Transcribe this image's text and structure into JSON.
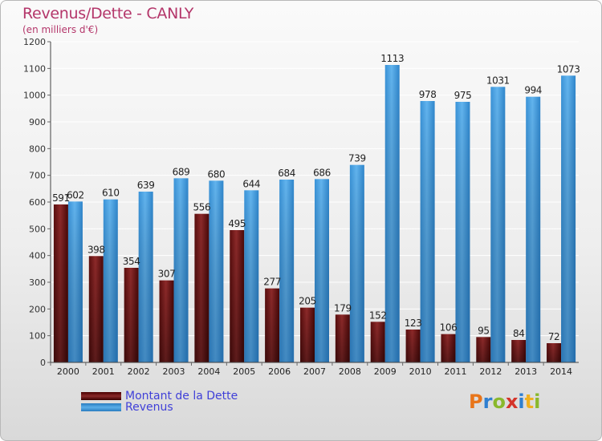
{
  "title": "Revenus/Dette - CANLY",
  "subtitle": "(en milliers d'€)",
  "colors": {
    "debt": "#7a1e1e",
    "revenue": "#4aa3e3",
    "title": "#b4366a",
    "legend_text": "#4040d8"
  },
  "legend": {
    "debt_label": "Montant de la Dette",
    "revenue_label": "Revenus"
  },
  "logo": {
    "text": "Proxiti"
  },
  "chart_data": {
    "type": "bar",
    "categories": [
      "2000",
      "2001",
      "2002",
      "2003",
      "2004",
      "2005",
      "2006",
      "2007",
      "2008",
      "2009",
      "2010",
      "2011",
      "2012",
      "2013",
      "2014"
    ],
    "series": [
      {
        "name": "Montant de la Dette",
        "values": [
          591,
          398,
          354,
          307,
          556,
          495,
          277,
          205,
          179,
          152,
          123,
          106,
          95,
          84,
          72
        ]
      },
      {
        "name": "Revenus",
        "values": [
          602,
          610,
          639,
          689,
          680,
          644,
          684,
          686,
          739,
          1113,
          978,
          975,
          1031,
          994,
          1073
        ]
      }
    ],
    "yticks": [
      0,
      100,
      200,
      300,
      400,
      500,
      600,
      700,
      800,
      900,
      1000,
      1100,
      1200
    ],
    "ylim": [
      0,
      1200
    ],
    "grid": true
  }
}
